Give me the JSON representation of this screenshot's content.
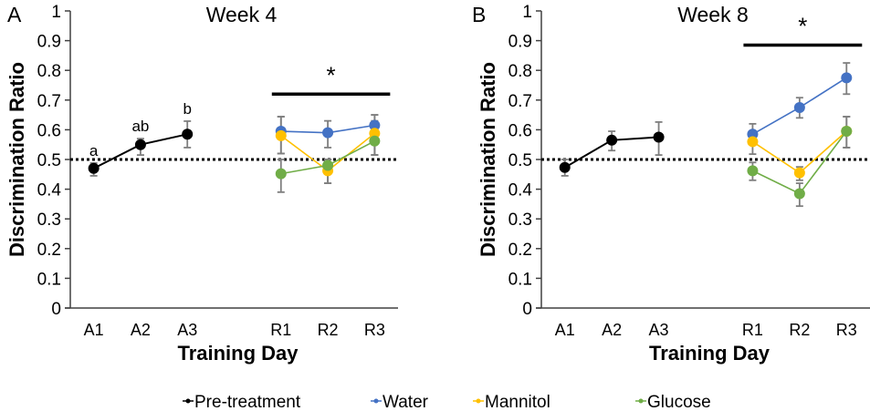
{
  "chart_data": [
    {
      "type": "line",
      "panel_letter": "A",
      "title": "Week 4",
      "xlabel": "Training Day",
      "ylabel": "Discrimination Ratio",
      "ylim": [
        0,
        1
      ],
      "yticks": [
        "0",
        "0.1",
        "0.2",
        "0.3",
        "0.4",
        "0.5",
        "0.6",
        "0.7",
        "0.8",
        "0.9",
        "1"
      ],
      "categories": [
        "A1",
        "A2",
        "A3",
        "",
        "R1",
        "R2",
        "R3"
      ],
      "reference_line": 0.5,
      "significance": {
        "label": "*",
        "from": "R1",
        "to": "R3"
      },
      "point_annotations": [
        {
          "x": "A1",
          "label": "a"
        },
        {
          "x": "A2",
          "label": "ab"
        },
        {
          "x": "A3",
          "label": "b"
        }
      ],
      "series": [
        {
          "name": "Pre-treatment",
          "color": "#000000",
          "x": [
            "A1",
            "A2",
            "A3"
          ],
          "values": [
            0.47,
            0.55,
            0.585
          ],
          "err_low": [
            0.445,
            0.515,
            0.54
          ],
          "err_high": [
            0.488,
            0.57,
            0.629
          ]
        },
        {
          "name": "Water",
          "color": "#4472C4",
          "x": [
            "R1",
            "R2",
            "R3"
          ],
          "values": [
            0.595,
            0.59,
            0.615
          ],
          "err_low": [
            0.52,
            0.54,
            0.515
          ],
          "err_high": [
            0.644,
            0.63,
            0.65
          ]
        },
        {
          "name": "Mannitol",
          "color": "#FFC000",
          "x": [
            "R1",
            "R2",
            "R3"
          ],
          "values": [
            0.58,
            0.462,
            0.588
          ],
          "err_low": [
            0.52,
            0.42,
            0.515
          ],
          "err_high": [
            0.644,
            0.5,
            0.65
          ]
        },
        {
          "name": "Glucose",
          "color": "#70AD47",
          "x": [
            "R1",
            "R2",
            "R3"
          ],
          "values": [
            0.452,
            0.48,
            0.562
          ],
          "err_low": [
            0.39,
            0.42,
            0.515
          ],
          "err_high": [
            0.5,
            0.5,
            0.63
          ]
        }
      ]
    },
    {
      "type": "line",
      "panel_letter": "B",
      "title": "Week 8",
      "xlabel": "Training Day",
      "ylabel": "Discrimination Ratio",
      "ylim": [
        0,
        1
      ],
      "yticks": [
        "0",
        "0.1",
        "0.2",
        "0.3",
        "0.4",
        "0.5",
        "0.6",
        "0.7",
        "0.8",
        "0.9",
        "1"
      ],
      "categories": [
        "A1",
        "A2",
        "A3",
        "",
        "R1",
        "R2",
        "R3"
      ],
      "reference_line": 0.5,
      "significance": {
        "label": "*",
        "from": "R1",
        "to": "R3"
      },
      "point_annotations": [],
      "series": [
        {
          "name": "Pre-treatment",
          "color": "#000000",
          "x": [
            "A1",
            "A2",
            "A3"
          ],
          "values": [
            0.473,
            0.565,
            0.575
          ],
          "err_low": [
            0.445,
            0.53,
            0.515
          ],
          "err_high": [
            0.5,
            0.595,
            0.626
          ]
        },
        {
          "name": "Water",
          "color": "#4472C4",
          "x": [
            "R1",
            "R2",
            "R3"
          ],
          "values": [
            0.585,
            0.675,
            0.775
          ],
          "err_low": [
            0.55,
            0.64,
            0.72
          ],
          "err_high": [
            0.62,
            0.708,
            0.825
          ]
        },
        {
          "name": "Mannitol",
          "color": "#FFC000",
          "x": [
            "R1",
            "R2",
            "R3"
          ],
          "values": [
            0.56,
            0.455,
            0.595
          ],
          "err_low": [
            0.518,
            0.43,
            0.54
          ],
          "err_high": [
            0.59,
            0.475,
            0.644
          ]
        },
        {
          "name": "Glucose",
          "color": "#70AD47",
          "x": [
            "R1",
            "R2",
            "R3"
          ],
          "values": [
            0.462,
            0.385,
            0.595
          ],
          "err_low": [
            0.43,
            0.343,
            0.54
          ],
          "err_high": [
            0.49,
            0.42,
            0.644
          ]
        }
      ]
    }
  ],
  "legend": {
    "placement": "bottom-center",
    "items": [
      {
        "label": "Pre-treatment",
        "color": "#000000"
      },
      {
        "label": "Water",
        "color": "#4472C4"
      },
      {
        "label": "Mannitol",
        "color": "#FFC000"
      },
      {
        "label": "Glucose",
        "color": "#70AD47"
      }
    ]
  },
  "colors": {
    "error_bar": "#7F7F7F",
    "axis": "#404040"
  }
}
